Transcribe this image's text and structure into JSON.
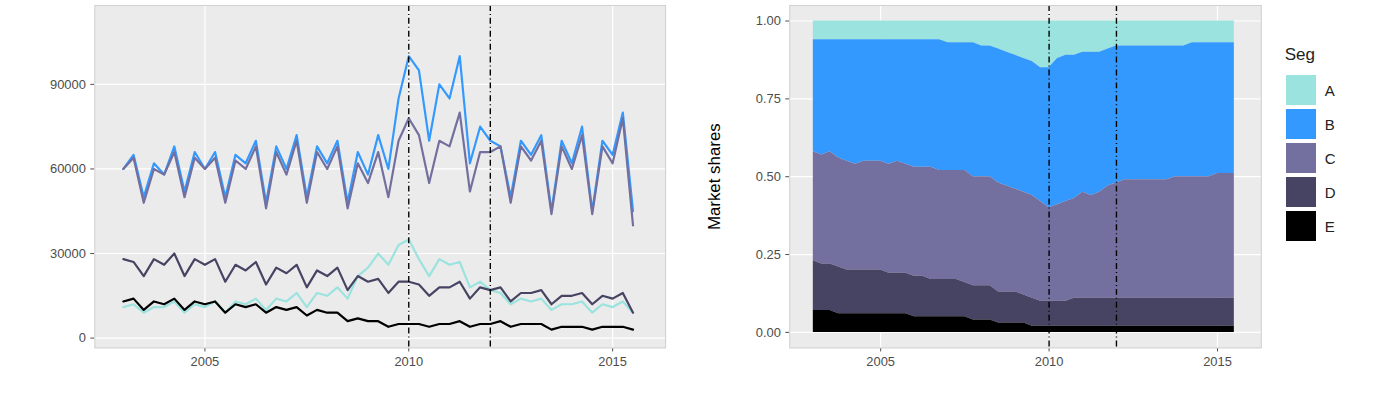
{
  "chart_data": [
    {
      "type": "line",
      "x": [
        2003,
        2003.25,
        2003.5,
        2003.75,
        2004,
        2004.25,
        2004.5,
        2004.75,
        2005,
        2005.25,
        2005.5,
        2005.75,
        2006,
        2006.25,
        2006.5,
        2006.75,
        2007,
        2007.25,
        2007.5,
        2007.75,
        2008,
        2008.25,
        2008.5,
        2008.75,
        2009,
        2009.25,
        2009.5,
        2009.75,
        2010,
        2010.25,
        2010.5,
        2010.75,
        2011,
        2011.25,
        2011.5,
        2011.75,
        2012,
        2012.25,
        2012.5,
        2012.75,
        2013,
        2013.25,
        2013.5,
        2013.75,
        2014,
        2014.25,
        2014.5,
        2014.75,
        2015,
        2015.25,
        2015.5
      ],
      "xlim": [
        2002.3,
        2016.3
      ],
      "xticks": [
        2005,
        2010,
        2015
      ],
      "ylim": [
        -3500,
        118000
      ],
      "yticks": [
        0,
        30000,
        60000,
        90000
      ],
      "grid": true,
      "vlines": [
        2010,
        2012
      ],
      "series": [
        {
          "name": "A",
          "color": "#9be3df",
          "values": [
            11000,
            12000,
            9000,
            11000,
            11000,
            13000,
            9000,
            12000,
            11000,
            13000,
            9000,
            13000,
            12000,
            14000,
            10000,
            14000,
            13000,
            16000,
            11000,
            16000,
            15000,
            18000,
            14000,
            22000,
            25000,
            30000,
            26000,
            33000,
            35000,
            28000,
            22000,
            28000,
            26000,
            27000,
            18000,
            20000,
            17000,
            16000,
            12000,
            14000,
            13000,
            14000,
            10000,
            12000,
            12000,
            13000,
            9000,
            12000,
            11000,
            13000,
            9000
          ]
        },
        {
          "name": "B",
          "color": "#3399ff",
          "values": [
            60000,
            65000,
            50000,
            62000,
            58000,
            68000,
            52000,
            66000,
            60000,
            66000,
            50000,
            65000,
            62000,
            70000,
            48000,
            68000,
            60000,
            72000,
            50000,
            68000,
            62000,
            70000,
            48000,
            66000,
            58000,
            72000,
            60000,
            85000,
            100000,
            95000,
            70000,
            90000,
            85000,
            100000,
            62000,
            75000,
            70000,
            68000,
            50000,
            70000,
            65000,
            72000,
            45000,
            70000,
            62000,
            75000,
            45000,
            70000,
            65000,
            80000,
            45000
          ]
        },
        {
          "name": "C",
          "color": "#736f9e",
          "values": [
            60000,
            64000,
            48000,
            60000,
            58000,
            66000,
            50000,
            64000,
            60000,
            64000,
            48000,
            63000,
            60000,
            68000,
            46000,
            66000,
            58000,
            70000,
            48000,
            66000,
            60000,
            68000,
            46000,
            62000,
            55000,
            66000,
            50000,
            70000,
            78000,
            72000,
            55000,
            70000,
            68000,
            80000,
            52000,
            66000,
            66000,
            68000,
            48000,
            68000,
            63000,
            70000,
            44000,
            68000,
            60000,
            72000,
            44000,
            68000,
            62000,
            78000,
            40000
          ]
        },
        {
          "name": "D",
          "color": "#474463",
          "values": [
            28000,
            27000,
            22000,
            28000,
            26000,
            30000,
            22000,
            28000,
            26000,
            28000,
            20000,
            26000,
            24000,
            27000,
            19000,
            25000,
            23000,
            26000,
            18000,
            24000,
            22000,
            25000,
            17000,
            22000,
            20000,
            21000,
            16000,
            20000,
            20000,
            19000,
            15000,
            18000,
            18000,
            20000,
            14000,
            18000,
            17000,
            18000,
            13000,
            16000,
            16000,
            17000,
            12000,
            15000,
            15000,
            16000,
            12000,
            15000,
            14000,
            16000,
            9000
          ]
        },
        {
          "name": "E",
          "color": "#000000",
          "values": [
            13000,
            14000,
            10000,
            13000,
            12000,
            14000,
            10000,
            13000,
            12000,
            13000,
            9000,
            12000,
            11000,
            12000,
            9000,
            11000,
            10000,
            11000,
            8000,
            10000,
            9000,
            9000,
            6000,
            7000,
            6000,
            6000,
            4000,
            5000,
            5000,
            5000,
            4000,
            5000,
            5000,
            6000,
            4000,
            5000,
            5000,
            6000,
            4000,
            5000,
            5000,
            5000,
            3000,
            4000,
            4000,
            4000,
            3000,
            4000,
            4000,
            4000,
            3000
          ]
        }
      ]
    },
    {
      "type": "area",
      "stacked": true,
      "y_label": "Market shares",
      "legend": "right",
      "legend_title": "Seg",
      "x": [
        2003,
        2003.25,
        2003.5,
        2003.75,
        2004,
        2004.25,
        2004.5,
        2004.75,
        2005,
        2005.25,
        2005.5,
        2005.75,
        2006,
        2006.25,
        2006.5,
        2006.75,
        2007,
        2007.25,
        2007.5,
        2007.75,
        2008,
        2008.25,
        2008.5,
        2008.75,
        2009,
        2009.25,
        2009.5,
        2009.75,
        2010,
        2010.25,
        2010.5,
        2010.75,
        2011,
        2011.25,
        2011.5,
        2011.75,
        2012,
        2012.25,
        2012.5,
        2012.75,
        2013,
        2013.25,
        2013.5,
        2013.75,
        2014,
        2014.25,
        2014.5,
        2014.75,
        2015,
        2015.25,
        2015.5
      ],
      "xlim": [
        2002.3,
        2016.3
      ],
      "xticks": [
        2005,
        2010,
        2015
      ],
      "ylim": [
        -0.05,
        1.05
      ],
      "yticks": [
        {
          "value": 0,
          "label": "0.00"
        },
        {
          "value": 0.25,
          "label": "0.25"
        },
        {
          "value": 0.5,
          "label": "0.50"
        },
        {
          "value": 0.75,
          "label": "0.75"
        },
        {
          "value": 1,
          "label": "1.00"
        }
      ],
      "grid": true,
      "vlines": [
        2010,
        2012
      ],
      "series": [
        {
          "name": "A",
          "color": "#9be3df",
          "values": [
            0.06,
            0.06,
            0.06,
            0.06,
            0.06,
            0.06,
            0.06,
            0.06,
            0.06,
            0.06,
            0.06,
            0.06,
            0.06,
            0.06,
            0.06,
            0.06,
            0.07,
            0.07,
            0.07,
            0.07,
            0.08,
            0.08,
            0.09,
            0.1,
            0.11,
            0.12,
            0.13,
            0.15,
            0.15,
            0.12,
            0.11,
            0.11,
            0.1,
            0.1,
            0.1,
            0.09,
            0.08,
            0.08,
            0.08,
            0.08,
            0.08,
            0.08,
            0.08,
            0.08,
            0.08,
            0.07,
            0.07,
            0.07,
            0.07,
            0.07,
            0.07
          ]
        },
        {
          "name": "B",
          "color": "#3399ff",
          "values": [
            0.36,
            0.37,
            0.36,
            0.38,
            0.39,
            0.4,
            0.39,
            0.39,
            0.39,
            0.4,
            0.39,
            0.4,
            0.41,
            0.41,
            0.41,
            0.42,
            0.41,
            0.41,
            0.41,
            0.43,
            0.42,
            0.42,
            0.43,
            0.43,
            0.43,
            0.43,
            0.43,
            0.43,
            0.45,
            0.47,
            0.47,
            0.46,
            0.45,
            0.46,
            0.45,
            0.44,
            0.44,
            0.43,
            0.43,
            0.43,
            0.43,
            0.43,
            0.43,
            0.42,
            0.42,
            0.43,
            0.43,
            0.43,
            0.42,
            0.42,
            0.42
          ]
        },
        {
          "name": "C",
          "color": "#736f9e",
          "values": [
            0.35,
            0.35,
            0.36,
            0.35,
            0.35,
            0.34,
            0.35,
            0.35,
            0.35,
            0.35,
            0.36,
            0.35,
            0.35,
            0.35,
            0.36,
            0.35,
            0.35,
            0.35,
            0.36,
            0.35,
            0.35,
            0.35,
            0.35,
            0.34,
            0.33,
            0.33,
            0.33,
            0.32,
            0.3,
            0.31,
            0.32,
            0.32,
            0.34,
            0.33,
            0.34,
            0.36,
            0.37,
            0.38,
            0.38,
            0.38,
            0.38,
            0.38,
            0.38,
            0.39,
            0.39,
            0.39,
            0.39,
            0.39,
            0.4,
            0.4,
            0.4
          ]
        },
        {
          "name": "D",
          "color": "#474463",
          "values": [
            0.16,
            0.15,
            0.15,
            0.15,
            0.14,
            0.14,
            0.14,
            0.14,
            0.14,
            0.13,
            0.13,
            0.13,
            0.13,
            0.13,
            0.12,
            0.12,
            0.12,
            0.12,
            0.11,
            0.11,
            0.11,
            0.11,
            0.1,
            0.1,
            0.1,
            0.09,
            0.09,
            0.08,
            0.08,
            0.08,
            0.08,
            0.09,
            0.09,
            0.09,
            0.09,
            0.09,
            0.09,
            0.09,
            0.09,
            0.09,
            0.09,
            0.09,
            0.09,
            0.09,
            0.09,
            0.09,
            0.09,
            0.09,
            0.09,
            0.09,
            0.09
          ]
        },
        {
          "name": "E",
          "color": "#000000",
          "values": [
            0.07,
            0.07,
            0.07,
            0.06,
            0.06,
            0.06,
            0.06,
            0.06,
            0.06,
            0.06,
            0.06,
            0.06,
            0.05,
            0.05,
            0.05,
            0.05,
            0.05,
            0.05,
            0.05,
            0.04,
            0.04,
            0.04,
            0.03,
            0.03,
            0.03,
            0.03,
            0.02,
            0.02,
            0.02,
            0.02,
            0.02,
            0.02,
            0.02,
            0.02,
            0.02,
            0.02,
            0.02,
            0.02,
            0.02,
            0.02,
            0.02,
            0.02,
            0.02,
            0.02,
            0.02,
            0.02,
            0.02,
            0.02,
            0.02,
            0.02,
            0.02
          ]
        }
      ]
    }
  ]
}
